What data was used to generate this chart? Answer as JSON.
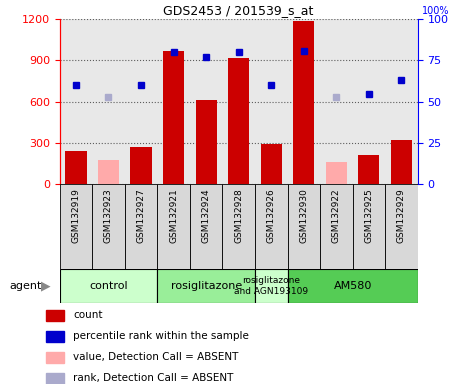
{
  "title": "GDS2453 / 201539_s_at",
  "samples": [
    "GSM132919",
    "GSM132923",
    "GSM132927",
    "GSM132921",
    "GSM132924",
    "GSM132928",
    "GSM132926",
    "GSM132930",
    "GSM132922",
    "GSM132925",
    "GSM132929"
  ],
  "bar_values": [
    240,
    null,
    270,
    970,
    610,
    920,
    290,
    1190,
    null,
    215,
    320
  ],
  "bar_absent_values": [
    null,
    175,
    null,
    null,
    null,
    null,
    null,
    null,
    160,
    null,
    null
  ],
  "percentile_present": [
    60,
    null,
    60,
    80,
    77,
    80,
    60,
    81,
    null,
    55,
    63
  ],
  "percentile_absent": [
    null,
    53,
    null,
    null,
    null,
    null,
    null,
    null,
    53,
    null,
    null
  ],
  "ylim_left": [
    0,
    1200
  ],
  "ylim_right": [
    0,
    100
  ],
  "yticks_left": [
    0,
    300,
    600,
    900,
    1200
  ],
  "yticks_right": [
    0,
    25,
    50,
    75,
    100
  ],
  "groups": [
    {
      "label": "control",
      "start": 0,
      "end": 3,
      "color": "#ccffcc"
    },
    {
      "label": "rosiglitazone",
      "start": 3,
      "end": 6,
      "color": "#99ee99"
    },
    {
      "label": "rosiglitazone\nand AGN193109",
      "start": 6,
      "end": 7,
      "color": "#ccffcc"
    },
    {
      "label": "AM580",
      "start": 7,
      "end": 11,
      "color": "#55cc55"
    }
  ],
  "bar_color_present": "#cc0000",
  "bar_color_absent": "#ffaaaa",
  "dot_color_present": "#0000cc",
  "dot_color_absent": "#aaaacc",
  "tick_bg_color": "#d8d8d8",
  "legend_items": [
    {
      "color": "#cc0000",
      "marker": "s",
      "label": "count"
    },
    {
      "color": "#0000cc",
      "marker": "s",
      "label": "percentile rank within the sample"
    },
    {
      "color": "#ffaaaa",
      "marker": "s",
      "label": "value, Detection Call = ABSENT"
    },
    {
      "color": "#aaaacc",
      "marker": "s",
      "label": "rank, Detection Call = ABSENT"
    }
  ],
  "plot_bg_color": "#e8e8e8"
}
